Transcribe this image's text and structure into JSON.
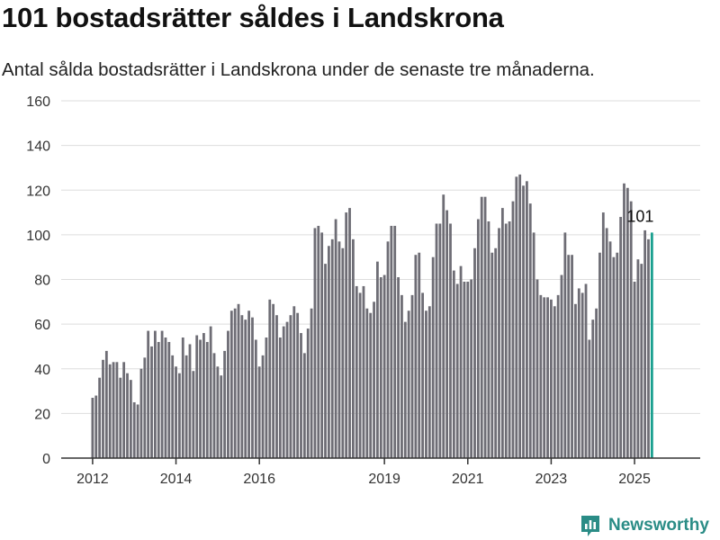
{
  "title": "101 bostadsrätter såldes i Landskrona",
  "subtitle": "Antal sålda bostadsrätter i Landskrona under de senaste tre månaderna.",
  "brand": {
    "name": "Newsworthy",
    "icon": "newsworthy-logo-icon",
    "color": "#2a8c86"
  },
  "colors": {
    "bar": "#6e6d75",
    "highlight": "#1aa08f",
    "grid": "#dddddd",
    "axis": "#333333"
  },
  "chart_data": {
    "type": "bar",
    "title": "",
    "xlabel": "",
    "ylabel": "",
    "ylim": [
      0,
      160
    ],
    "yticks": [
      0,
      20,
      40,
      60,
      80,
      100,
      120,
      140,
      160
    ],
    "grid": true,
    "start": "2012-01",
    "x_tick_labels": [
      "2012",
      "2014",
      "2016",
      "2019",
      "2021",
      "2023",
      "2025"
    ],
    "annotation": {
      "text": "101",
      "index": -1
    },
    "values": [
      27,
      28,
      36,
      44,
      48,
      42,
      43,
      43,
      36,
      43,
      38,
      35,
      25,
      24,
      40,
      45,
      57,
      50,
      57,
      52,
      57,
      54,
      52,
      46,
      41,
      38,
      54,
      46,
      51,
      39,
      55,
      53,
      56,
      52,
      59,
      47,
      41,
      37,
      48,
      57,
      66,
      67,
      69,
      64,
      62,
      66,
      63,
      53,
      41,
      46,
      54,
      71,
      69,
      64,
      54,
      59,
      61,
      64,
      68,
      65,
      56,
      47,
      58,
      67,
      103,
      104,
      101,
      87,
      95,
      98,
      107,
      97,
      94,
      110,
      112,
      98,
      77,
      74,
      77,
      67,
      65,
      70,
      88,
      81,
      82,
      97,
      104,
      104,
      81,
      73,
      61,
      66,
      73,
      91,
      92,
      74,
      66,
      68,
      90,
      105,
      105,
      118,
      111,
      105,
      84,
      78,
      86,
      79,
      79,
      80,
      94,
      107,
      117,
      117,
      106,
      92,
      94,
      103,
      112,
      105,
      106,
      115,
      126,
      127,
      122,
      124,
      114,
      101,
      80,
      73,
      72,
      72,
      71,
      68,
      73,
      82,
      101,
      91,
      91,
      69,
      76,
      74,
      78,
      53,
      62,
      67,
      92,
      110,
      103,
      97,
      90,
      92,
      108,
      123,
      121,
      115,
      79,
      89,
      87,
      102,
      98,
      101
    ]
  }
}
